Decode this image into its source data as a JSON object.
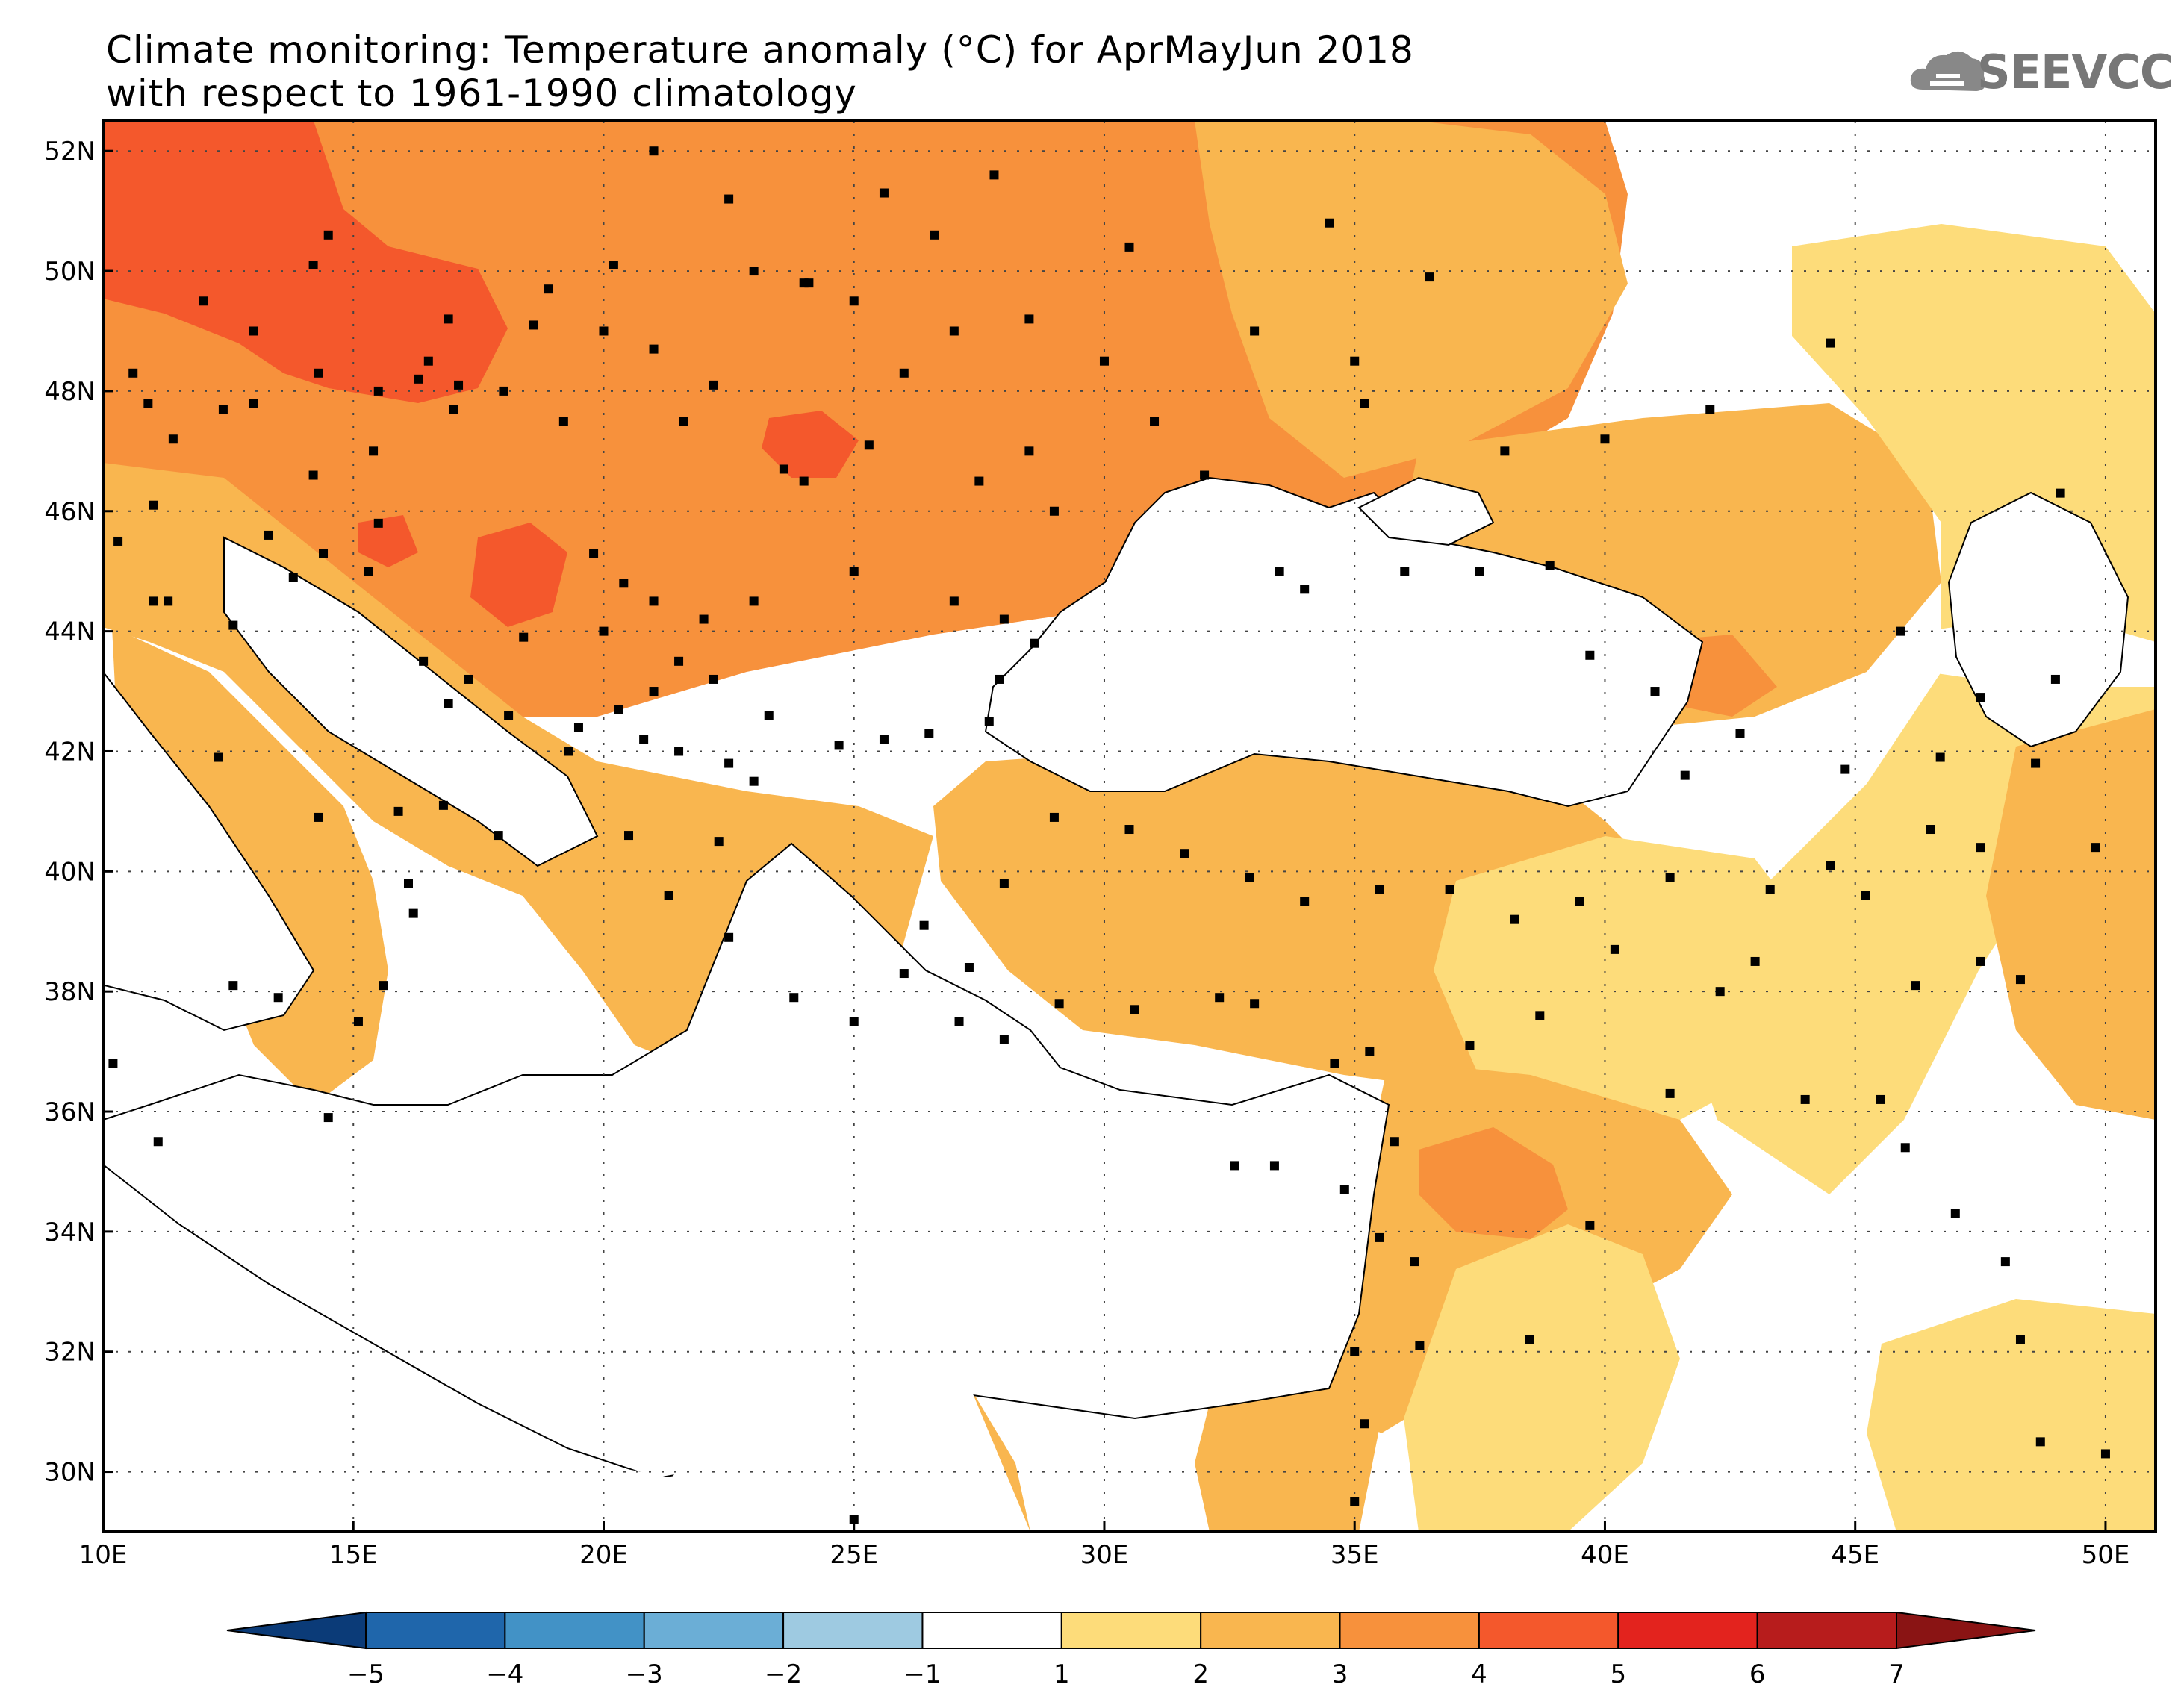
{
  "title": {
    "line1": "Climate monitoring: Temperature anomaly (°C) for AprMayJun 2018",
    "line2": "with respect to 1961-1990 climatology"
  },
  "logo": {
    "text": "SEEVCCC",
    "icon": "cloud-icon"
  },
  "map": {
    "lon_range": [
      10,
      51
    ],
    "lat_range": [
      29,
      52.5
    ],
    "lon_ticks": [
      "10E",
      "15E",
      "20E",
      "25E",
      "30E",
      "35E",
      "40E",
      "45E",
      "50E"
    ],
    "lat_ticks": [
      "52N",
      "50N",
      "48N",
      "46N",
      "44N",
      "42N",
      "40N",
      "38N",
      "36N",
      "34N",
      "32N",
      "30N"
    ],
    "gridlines": "dotted"
  },
  "colorbar": {
    "labels": [
      "-5",
      "-4",
      "-3",
      "-2",
      "-1",
      "1",
      "2",
      "3",
      "4",
      "5",
      "6",
      "7"
    ],
    "colors": [
      "#0b3b78",
      "#1f66ab",
      "#4292c6",
      "#6baed6",
      "#9ecae1",
      "#ffffff",
      "#fddc7a",
      "#f9b64f",
      "#f7913c",
      "#f4582c",
      "#e3231e",
      "#b71c1c",
      "#8a1414"
    ]
  }
}
